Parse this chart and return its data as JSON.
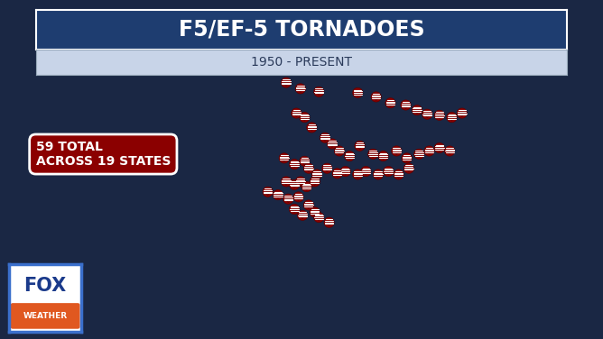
{
  "title": "F5/EF-5 TORNADOES",
  "subtitle": "1950 - PRESENT",
  "background_color": "#1a2744",
  "title_bg_color": "#1e3d70",
  "subtitle_bg_color": "#c8d4e8",
  "map_face_color": "#a8b4c4",
  "water_color": "#2a4a80",
  "state_edge_color": "#ffffff",
  "marker_color": "#8b0000",
  "marker_edge_color": "#600000",
  "stats_box_color": "#8b0000",
  "stats_text": "59 TOTAL\nACROSS 19 STATES",
  "stats_text_color": "#ffffff",
  "tornado_locations": [
    [
      -97.4,
      48.2
    ],
    [
      -95.2,
      47.8
    ],
    [
      -97.0,
      45.2
    ],
    [
      -95.6,
      44.6
    ],
    [
      -93.8,
      44.3
    ],
    [
      -90.0,
      44.2
    ],
    [
      -88.2,
      43.8
    ],
    [
      -86.8,
      43.2
    ],
    [
      -85.3,
      43.0
    ],
    [
      -84.2,
      42.5
    ],
    [
      -83.2,
      42.1
    ],
    [
      -82.0,
      42.0
    ],
    [
      -80.8,
      41.8
    ],
    [
      -79.8,
      42.2
    ],
    [
      -96.0,
      42.2
    ],
    [
      -95.2,
      41.8
    ],
    [
      -94.5,
      40.8
    ],
    [
      -93.2,
      39.8
    ],
    [
      -92.5,
      39.2
    ],
    [
      -91.8,
      38.5
    ],
    [
      -90.8,
      38.0
    ],
    [
      -89.8,
      39.0
    ],
    [
      -88.5,
      38.2
    ],
    [
      -87.5,
      38.0
    ],
    [
      -86.2,
      38.5
    ],
    [
      -85.2,
      37.8
    ],
    [
      -84.0,
      38.2
    ],
    [
      -83.0,
      38.5
    ],
    [
      -82.0,
      38.8
    ],
    [
      -81.0,
      38.5
    ],
    [
      -97.2,
      37.8
    ],
    [
      -96.2,
      37.2
    ],
    [
      -95.2,
      37.5
    ],
    [
      -94.8,
      36.8
    ],
    [
      -94.0,
      36.2
    ],
    [
      -93.0,
      36.8
    ],
    [
      -92.0,
      36.3
    ],
    [
      -91.2,
      36.5
    ],
    [
      -90.0,
      36.2
    ],
    [
      -89.2,
      36.5
    ],
    [
      -88.0,
      36.2
    ],
    [
      -87.0,
      36.5
    ],
    [
      -86.0,
      36.2
    ],
    [
      -85.0,
      36.8
    ],
    [
      -97.0,
      35.5
    ],
    [
      -96.2,
      35.2
    ],
    [
      -95.6,
      35.5
    ],
    [
      -95.0,
      35.0
    ],
    [
      -94.2,
      35.5
    ],
    [
      -98.8,
      34.5
    ],
    [
      -97.8,
      34.2
    ],
    [
      -96.8,
      33.8
    ],
    [
      -95.8,
      34.0
    ],
    [
      -94.8,
      33.2
    ],
    [
      -96.2,
      32.8
    ],
    [
      -95.4,
      32.2
    ],
    [
      -94.2,
      32.5
    ],
    [
      -93.8,
      32.0
    ],
    [
      -92.8,
      31.5
    ]
  ],
  "xlim": [
    -125,
    -66
  ],
  "ylim": [
    24,
    50
  ],
  "figsize": [
    6.68,
    3.76
  ],
  "dpi": 100,
  "title_fontsize": 17,
  "subtitle_fontsize": 10,
  "stats_fontsize": 10
}
